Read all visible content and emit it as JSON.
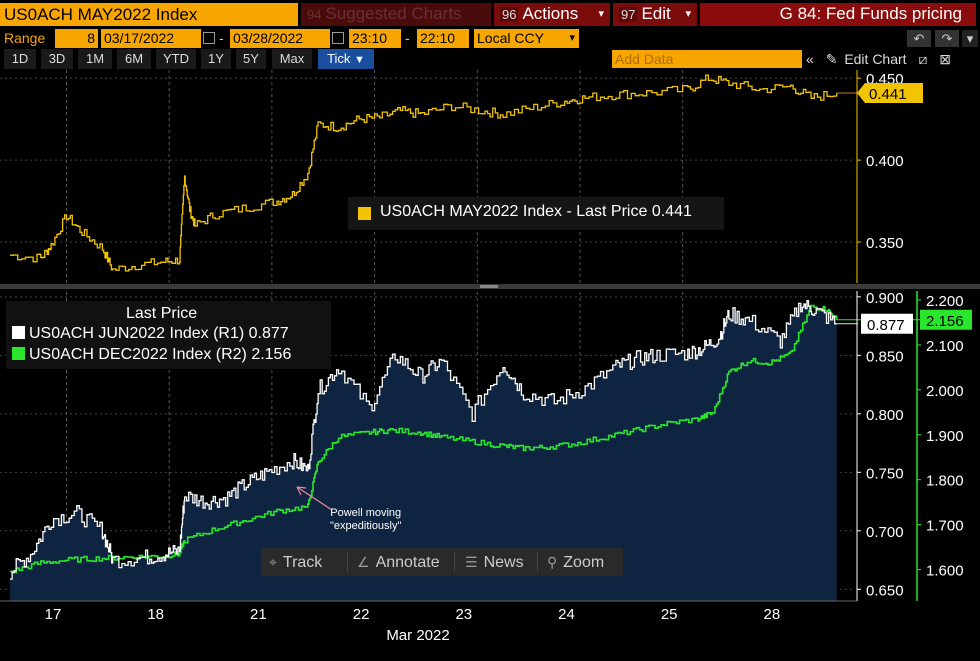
{
  "header": {
    "ticker": "US0ACH MAY2022 Index",
    "suggested": "Suggested Charts",
    "suggested_num": "94",
    "actions_num": "96",
    "actions": "Actions",
    "edit_num": "97",
    "edit": "Edit",
    "g84": "G 84: Fed Funds pricing"
  },
  "range_bar": {
    "range_label": "Range",
    "range_value": "8",
    "start_date": "03/17/2022",
    "end_date": "03/28/2022",
    "start_time": "23:10",
    "end_time": "22:10",
    "currency": "Local CCY"
  },
  "period_bar": {
    "periods": [
      "1D",
      "3D",
      "1M",
      "6M",
      "YTD",
      "1Y",
      "5Y",
      "Max",
      "Tick"
    ],
    "active": "Tick",
    "add_data_placeholder": "Add Data",
    "edit_chart": "Edit Chart"
  },
  "legend_top": {
    "text": "US0ACH MAY2022 Index  - Last Price 0.441"
  },
  "legend_bottom": {
    "title": "Last Price",
    "row1": "US0ACH JUN2022 Index  (R1) 0.877",
    "row2": "US0ACH DEC2022 Index  (R2) 2.156"
  },
  "annotation": {
    "line1": "Powell moving",
    "line2": "\"expeditiously\""
  },
  "tools": {
    "track": "Track",
    "annotate": "Annotate",
    "news": "News",
    "zoom": "Zoom"
  },
  "colors": {
    "may": "#f2c400",
    "jun": "#ffffff",
    "dec": "#29e62c",
    "area": "#0f2440",
    "header_orange": "#f7a600",
    "header_red": "#8a0c0c"
  },
  "chart_data": [
    {
      "type": "line",
      "title": "US0ACH MAY2022 Index",
      "series": [
        {
          "name": "US0ACH MAY2022 Index",
          "points": [
            [
              0,
              0.342
            ],
            [
              0.3,
              0.34
            ],
            [
              0.4,
              0.348
            ],
            [
              0.55,
              0.366
            ],
            [
              0.7,
              0.356
            ],
            [
              0.9,
              0.346
            ],
            [
              1.0,
              0.333
            ],
            [
              1.25,
              0.336
            ],
            [
              1.5,
              0.338
            ],
            [
              1.65,
              0.339
            ],
            [
              1.7,
              0.39
            ],
            [
              1.75,
              0.37
            ],
            [
              1.8,
              0.36
            ],
            [
              2.0,
              0.367
            ],
            [
              2.3,
              0.371
            ],
            [
              2.6,
              0.375
            ],
            [
              2.75,
              0.379
            ],
            [
              2.9,
              0.392
            ],
            [
              3.0,
              0.422
            ],
            [
              3.2,
              0.42
            ],
            [
              3.4,
              0.425
            ],
            [
              3.6,
              0.426
            ],
            [
              3.8,
              0.43
            ],
            [
              4.0,
              0.428
            ],
            [
              4.3,
              0.433
            ],
            [
              4.6,
              0.43
            ],
            [
              4.8,
              0.428
            ],
            [
              5.1,
              0.432
            ],
            [
              5.4,
              0.436
            ],
            [
              5.6,
              0.438
            ],
            [
              5.9,
              0.44
            ],
            [
              6.2,
              0.441
            ],
            [
              6.6,
              0.443
            ],
            [
              6.8,
              0.45
            ],
            [
              7.0,
              0.447
            ],
            [
              7.3,
              0.443
            ],
            [
              7.6,
              0.445
            ],
            [
              7.8,
              0.438
            ],
            [
              8.05,
              0.441
            ]
          ]
        }
      ],
      "xlabel": "",
      "ylabel": "",
      "ylim": [
        0.325,
        0.455
      ],
      "yticks": [
        0.35,
        0.4,
        0.45
      ],
      "last_value_label": "0.441"
    },
    {
      "type": "line",
      "categories": [
        "17",
        "18",
        "21",
        "22",
        "23",
        "24",
        "25",
        "28"
      ],
      "xlabel": "Mar 2022",
      "series": [
        {
          "name": "US0ACH JUN2022 Index",
          "axis": "left",
          "points": [
            [
              0,
              0.665
            ],
            [
              0.2,
              0.68
            ],
            [
              0.4,
              0.71
            ],
            [
              0.65,
              0.715
            ],
            [
              0.9,
              0.7
            ],
            [
              1.0,
              0.675
            ],
            [
              1.3,
              0.677
            ],
            [
              1.5,
              0.68
            ],
            [
              1.65,
              0.683
            ],
            [
              1.7,
              0.73
            ],
            [
              1.9,
              0.725
            ],
            [
              2.1,
              0.728
            ],
            [
              2.3,
              0.74
            ],
            [
              2.5,
              0.75
            ],
            [
              2.75,
              0.76
            ],
            [
              2.9,
              0.752
            ],
            [
              3.0,
              0.82
            ],
            [
              3.2,
              0.84
            ],
            [
              3.5,
              0.805
            ],
            [
              3.75,
              0.85
            ],
            [
              4.0,
              0.832
            ],
            [
              4.2,
              0.845
            ],
            [
              4.5,
              0.8
            ],
            [
              4.8,
              0.843
            ],
            [
              5.0,
              0.818
            ],
            [
              5.3,
              0.81
            ],
            [
              5.6,
              0.822
            ],
            [
              5.9,
              0.84
            ],
            [
              6.1,
              0.847
            ],
            [
              6.3,
              0.85
            ],
            [
              6.6,
              0.852
            ],
            [
              6.75,
              0.856
            ],
            [
              6.9,
              0.865
            ],
            [
              7.0,
              0.885
            ],
            [
              7.2,
              0.88
            ],
            [
              7.5,
              0.862
            ],
            [
              7.7,
              0.894
            ],
            [
              7.85,
              0.888
            ],
            [
              8.05,
              0.877
            ]
          ]
        },
        {
          "name": "US0ACH DEC2022 Index",
          "axis": "right",
          "points": [
            [
              0,
              1.595
            ],
            [
              0.3,
              1.615
            ],
            [
              0.6,
              1.622
            ],
            [
              0.9,
              1.625
            ],
            [
              1.2,
              1.628
            ],
            [
              1.5,
              1.63
            ],
            [
              1.65,
              1.635
            ],
            [
              1.7,
              1.665
            ],
            [
              2.0,
              1.69
            ],
            [
              2.3,
              1.71
            ],
            [
              2.6,
              1.73
            ],
            [
              2.9,
              1.74
            ],
            [
              3.0,
              1.84
            ],
            [
              3.2,
              1.895
            ],
            [
              3.5,
              1.905
            ],
            [
              3.7,
              1.91
            ],
            [
              4.0,
              1.905
            ],
            [
              4.2,
              1.895
            ],
            [
              4.5,
              1.885
            ],
            [
              4.8,
              1.875
            ],
            [
              5.0,
              1.87
            ],
            [
              5.2,
              1.872
            ],
            [
              5.5,
              1.88
            ],
            [
              5.8,
              1.895
            ],
            [
              6.1,
              1.91
            ],
            [
              6.4,
              1.925
            ],
            [
              6.7,
              1.935
            ],
            [
              6.85,
              1.95
            ],
            [
              7.0,
              2.04
            ],
            [
              7.2,
              2.065
            ],
            [
              7.4,
              2.06
            ],
            [
              7.6,
              2.08
            ],
            [
              7.8,
              2.185
            ],
            [
              7.95,
              2.18
            ],
            [
              8.05,
              2.156
            ]
          ]
        }
      ],
      "left_axis": {
        "ylim": [
          0.64,
          0.905
        ],
        "yticks": [
          0.65,
          0.7,
          0.75,
          0.8,
          0.85,
          0.9
        ],
        "last_value_label": "0.877"
      },
      "right_axis": {
        "ylim": [
          1.53,
          2.22
        ],
        "yticks": [
          1.6,
          1.7,
          1.8,
          1.9,
          2.0,
          2.1,
          2.2
        ],
        "last_value_label": "2.156"
      }
    }
  ]
}
